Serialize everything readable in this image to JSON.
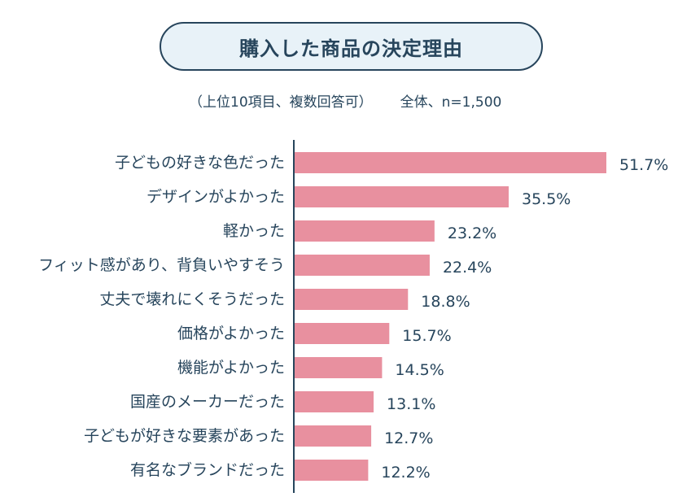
{
  "title": "購入した商品の決定理由",
  "note": "（上位10項目、複数回答可）",
  "sample": "全体、n=1,500",
  "colors": {
    "bar": "#e8909f",
    "text": "#27455c",
    "axis": "#27455c",
    "title_bg": "#e8f2f8"
  },
  "chart_data": {
    "type": "bar",
    "orientation": "horizontal",
    "title": "購入した商品の決定理由",
    "categories": [
      "子どもの好きな色だった",
      "デザインがよかった",
      "軽かった",
      "フィット感があり、背負いやすそう",
      "丈夫で壊れにくそうだった",
      "価格がよかった",
      "機能がよかった",
      "国産のメーカーだった",
      "子どもが好きな要素があった",
      "有名なブランドだった"
    ],
    "values": [
      51.7,
      35.5,
      23.2,
      22.4,
      18.8,
      15.7,
      14.5,
      13.1,
      12.7,
      12.2
    ],
    "value_labels": [
      "51.7%",
      "35.5%",
      "23.2%",
      "22.4%",
      "18.8%",
      "15.7%",
      "14.5%",
      "13.1%",
      "12.7%",
      "12.2%"
    ],
    "unit": "%",
    "xlim": [
      0,
      51.7
    ],
    "grid": false,
    "legend": "none"
  }
}
